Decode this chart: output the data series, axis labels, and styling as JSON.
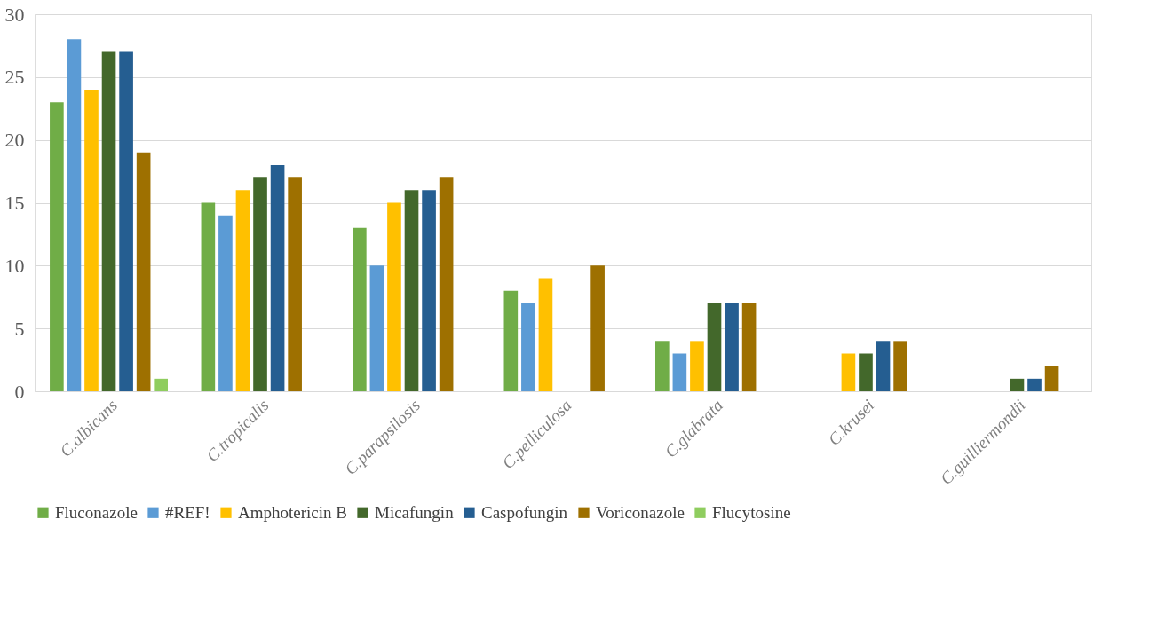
{
  "chart_data": {
    "type": "bar",
    "categories": [
      "C.albicans",
      "C.tropicalis",
      "C.parapsilosis",
      "C.pelliculosa",
      "C.glabrata",
      "C.krusei",
      "C.guilliermondii"
    ],
    "series": [
      {
        "name": "Fluconazole",
        "color": "#70ad47",
        "values": [
          23,
          15,
          13,
          8,
          4,
          null,
          null
        ]
      },
      {
        "name": "#REF!",
        "color": "#5b9bd5",
        "values": [
          28,
          14,
          10,
          7,
          3,
          null,
          null
        ]
      },
      {
        "name": "Amphotericin B",
        "color": "#ffc000",
        "values": [
          24,
          16,
          15,
          9,
          4,
          3,
          null
        ]
      },
      {
        "name": "Micafungin",
        "color": "#43682b",
        "values": [
          27,
          17,
          16,
          null,
          7,
          3,
          1
        ]
      },
      {
        "name": "Caspofungin",
        "color": "#255e91",
        "values": [
          27,
          18,
          16,
          null,
          7,
          4,
          1
        ]
      },
      {
        "name": "Voriconazole",
        "color": "#9e7000",
        "values": [
          19,
          17,
          17,
          10,
          7,
          4,
          2
        ]
      },
      {
        "name": "Flucytosine",
        "color": "#8fcd5f",
        "values": [
          1,
          null,
          null,
          null,
          null,
          null,
          null
        ]
      }
    ],
    "ylim": [
      0,
      30
    ],
    "yticks": [
      0,
      5,
      10,
      15,
      20,
      25,
      30
    ],
    "grid": "y",
    "legend": "bottom"
  }
}
